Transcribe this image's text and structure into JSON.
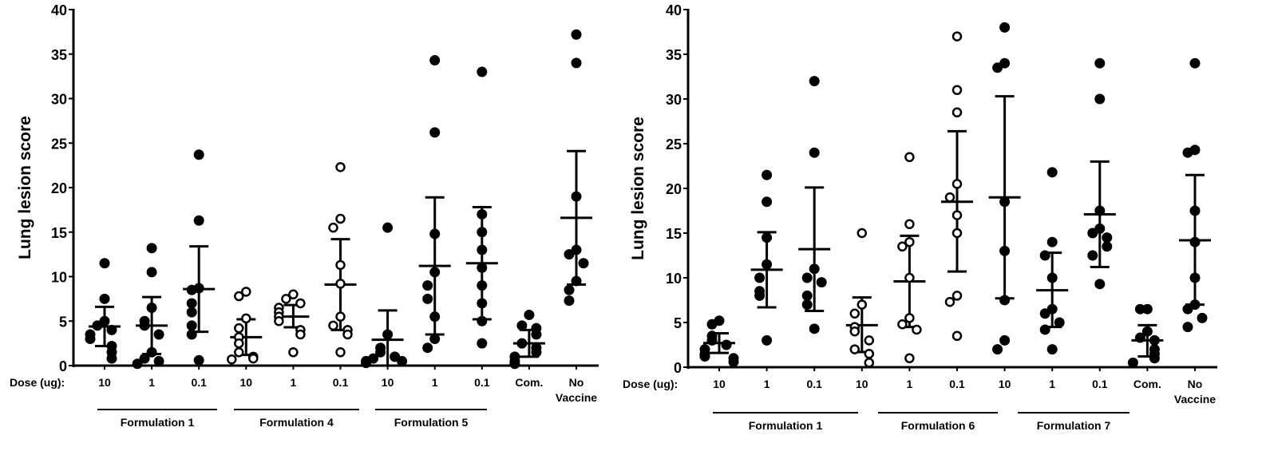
{
  "chart_data": [
    {
      "type": "scatter",
      "ylabel": "Lung lesion score",
      "ylim": [
        0,
        40
      ],
      "yticks": [
        "0",
        "5",
        "10",
        "15",
        "20",
        "25",
        "30",
        "35",
        "40"
      ],
      "dose_label": "Dose (ug):",
      "categories": [
        "10",
        "1",
        "0.1",
        "10",
        "1",
        "0.1",
        "10",
        "1",
        "0.1",
        "Com.",
        "No Vaccine"
      ],
      "formulations": [
        {
          "label": "Formulation 1",
          "groups": [
            0,
            1,
            2
          ]
        },
        {
          "label": "Formulation 4",
          "groups": [
            3,
            4,
            5
          ]
        },
        {
          "label": "Formulation 5",
          "groups": [
            6,
            7,
            8
          ]
        }
      ],
      "series": [
        {
          "name": "Formulation 1 10",
          "marker": "filled",
          "values": [
            11.5,
            7.5,
            5,
            4.5,
            4,
            3.5,
            3,
            2.2,
            1.5,
            0.8
          ],
          "mean": 4.4,
          "err": [
            2.2,
            6.6
          ]
        },
        {
          "name": "Formulation 1 1",
          "marker": "filled",
          "values": [
            13.2,
            10.5,
            6.5,
            5,
            4.5,
            3.5,
            1.5,
            0.8,
            0.5,
            0.2
          ],
          "mean": 4.5,
          "err": [
            1.3,
            7.7
          ]
        },
        {
          "name": "Formulation 1 0.1",
          "marker": "filled",
          "values": [
            23.7,
            16.3,
            8.7,
            8.5,
            7,
            6,
            4.5,
            3.5,
            0.6
          ],
          "mean": 8.6,
          "err": [
            3.8,
            13.4
          ]
        },
        {
          "name": "Formulation 4 10",
          "marker": "open",
          "values": [
            8.3,
            7.8,
            5.3,
            4.2,
            3.2,
            2.5,
            1.5,
            1,
            0.8,
            0.7
          ],
          "mean": 3.2,
          "err": [
            1.2,
            5.2
          ]
        },
        {
          "name": "Formulation 4 1",
          "marker": "open",
          "values": [
            8,
            7.5,
            7,
            6.5,
            6,
            5.5,
            5,
            4,
            3.5,
            1.5
          ],
          "mean": 5.5,
          "err": [
            4.3,
            6.8
          ]
        },
        {
          "name": "Formulation 4 0.1",
          "marker": "open",
          "values": [
            22.3,
            16.5,
            15.5,
            11.3,
            9.2,
            5.5,
            4.5,
            4,
            3.5,
            1.5
          ],
          "mean": 9.1,
          "err": [
            4.0,
            14.2
          ]
        },
        {
          "name": "Formulation 5 10",
          "marker": "filled",
          "values": [
            15.5,
            3.5,
            2,
            1.5,
            1,
            0.8,
            0.5,
            0.5,
            0.3
          ],
          "mean": 2.9,
          "err": [
            0,
            6.2
          ]
        },
        {
          "name": "Formulation 5 1",
          "marker": "filled",
          "values": [
            34.3,
            26.2,
            14.8,
            10.5,
            9,
            7.5,
            5.5,
            3,
            2
          ],
          "mean": 11.2,
          "err": [
            3.5,
            18.9
          ]
        },
        {
          "name": "Formulation 5 0.1",
          "marker": "filled",
          "values": [
            33,
            17,
            15,
            13,
            11,
            9,
            7,
            5,
            2.5
          ],
          "mean": 11.5,
          "err": [
            5.2,
            17.8
          ]
        },
        {
          "name": "Com.",
          "marker": "filled",
          "values": [
            5.7,
            4.5,
            4.2,
            3.5,
            2.5,
            2,
            1.5,
            1,
            0.5,
            0.2
          ],
          "mean": 2.5,
          "err": [
            1.0,
            4.0
          ]
        },
        {
          "name": "No Vaccine",
          "marker": "filled",
          "values": [
            37.2,
            34,
            19,
            13,
            12.5,
            11.5,
            9.5,
            8.5,
            7.3
          ],
          "mean": 16.6,
          "err": [
            9.1,
            24.1
          ]
        }
      ]
    },
    {
      "type": "scatter",
      "ylabel": "Lung lesion score",
      "ylim": [
        0,
        40
      ],
      "yticks": [
        "0",
        "5",
        "10",
        "15",
        "20",
        "25",
        "30",
        "35",
        "40"
      ],
      "dose_label": "Dose (ug):",
      "categories": [
        "10",
        "1",
        "0.1",
        "10",
        "1",
        "0.1",
        "10",
        "1",
        "0.1",
        "Com.",
        "No Vaccine"
      ],
      "formulations": [
        {
          "label": "Formulation 1",
          "groups": [
            0,
            1,
            2
          ]
        },
        {
          "label": "Formulation 6",
          "groups": [
            3,
            4,
            5
          ]
        },
        {
          "label": "Formulation 7",
          "groups": [
            6,
            7,
            8
          ]
        }
      ],
      "series": [
        {
          "name": "Formulation 1 10",
          "marker": "filled",
          "values": [
            5.2,
            4.8,
            3.5,
            3,
            2.5,
            2,
            1.5,
            1.2,
            1,
            0.6
          ],
          "mean": 2.7,
          "err": [
            1.6,
            3.8
          ]
        },
        {
          "name": "Formulation 1 1",
          "marker": "filled",
          "values": [
            21.5,
            18.5,
            14.5,
            11.5,
            10,
            8.5,
            8,
            3
          ],
          "mean": 10.9,
          "err": [
            6.7,
            15.1
          ]
        },
        {
          "name": "Formulation 1 0.1",
          "marker": "filled",
          "values": [
            32,
            24,
            11,
            10,
            9.5,
            8,
            7,
            4.3
          ],
          "mean": 13.2,
          "err": [
            6.3,
            20.1
          ]
        },
        {
          "name": "Formulation 6 10",
          "marker": "open",
          "values": [
            15,
            7,
            6,
            4.5,
            4,
            3,
            2,
            1.5,
            0.5
          ],
          "mean": 4.7,
          "err": [
            1.7,
            7.8
          ]
        },
        {
          "name": "Formulation 6 1",
          "marker": "open",
          "values": [
            23.5,
            16,
            14,
            13.5,
            10,
            5.5,
            4.8,
            4.2,
            1
          ],
          "mean": 9.6,
          "err": [
            4.5,
            14.7
          ]
        },
        {
          "name": "Formulation 6 0.1",
          "marker": "open",
          "values": [
            37,
            31,
            28.5,
            20.5,
            19,
            17,
            15,
            8,
            7.3,
            3.5
          ],
          "mean": 18.5,
          "err": [
            10.7,
            26.4
          ]
        },
        {
          "name": "Formulation 7 10",
          "marker": "filled",
          "values": [
            38,
            34,
            33.5,
            18.5,
            13,
            7.5,
            3,
            2
          ],
          "mean": 19.0,
          "err": [
            7.7,
            30.3
          ]
        },
        {
          "name": "Formulation 7 1",
          "marker": "filled",
          "values": [
            21.8,
            14,
            12.5,
            10,
            6.5,
            6,
            5,
            4.2,
            2
          ],
          "mean": 8.6,
          "err": [
            4.5,
            12.8
          ]
        },
        {
          "name": "Formulation 7 0.1",
          "marker": "filled",
          "values": [
            34,
            30,
            17.5,
            15.5,
            15,
            14.5,
            13.5,
            12.5,
            9.3
          ],
          "mean": 17.1,
          "err": [
            11.2,
            23.0
          ]
        },
        {
          "name": "Com.",
          "marker": "filled",
          "values": [
            6.5,
            6.5,
            4,
            3.3,
            3,
            2,
            1.5,
            1,
            0.5
          ],
          "mean": 3.0,
          "err": [
            1.2,
            4.7
          ]
        },
        {
          "name": "No Vaccine",
          "marker": "filled",
          "values": [
            34,
            24.3,
            24,
            17.5,
            14,
            10,
            7,
            6.5,
            5.5,
            4.5
          ],
          "mean": 14.2,
          "err": [
            7.0,
            21.5
          ]
        }
      ]
    }
  ]
}
